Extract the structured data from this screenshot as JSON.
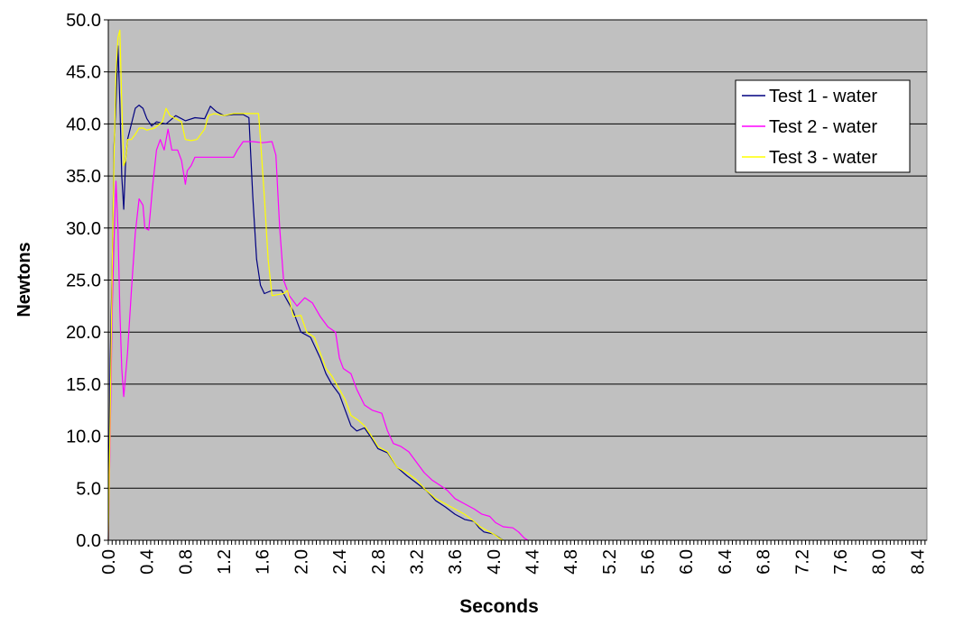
{
  "chart_data": {
    "type": "line",
    "title": "",
    "xlabel": "Seconds",
    "ylabel": "Newtons",
    "xlim": [
      0.0,
      8.5
    ],
    "ylim": [
      0.0,
      50.0
    ],
    "x_tick_labels": [
      "0.0",
      "0.4",
      "0.8",
      "1.2",
      "1.6",
      "2.0",
      "2.4",
      "2.8",
      "3.2",
      "3.6",
      "4.0",
      "4.4",
      "4.8",
      "5.2",
      "5.6",
      "6.0",
      "6.4",
      "6.8",
      "7.2",
      "7.6",
      "8.0",
      "8.4"
    ],
    "y_tick_labels": [
      "0.0",
      "5.0",
      "10.0",
      "15.0",
      "20.0",
      "25.0",
      "30.0",
      "35.0",
      "40.0",
      "45.0",
      "50.0"
    ],
    "grid": "horizontal",
    "legend_position": "top-right",
    "plot_background": "#c0c0c0",
    "series": [
      {
        "name": "Test 1 - water",
        "color": "#000080",
        "points": [
          [
            0.0,
            0.0
          ],
          [
            0.02,
            17.5
          ],
          [
            0.04,
            26.0
          ],
          [
            0.06,
            38.0
          ],
          [
            0.08,
            42.0
          ],
          [
            0.1,
            47.5
          ],
          [
            0.12,
            42.0
          ],
          [
            0.14,
            35.0
          ],
          [
            0.16,
            31.8
          ],
          [
            0.18,
            36.5
          ],
          [
            0.2,
            38.5
          ],
          [
            0.24,
            40.0
          ],
          [
            0.28,
            41.5
          ],
          [
            0.32,
            41.8
          ],
          [
            0.36,
            41.5
          ],
          [
            0.4,
            40.5
          ],
          [
            0.45,
            39.8
          ],
          [
            0.5,
            40.2
          ],
          [
            0.6,
            40.0
          ],
          [
            0.7,
            40.8
          ],
          [
            0.8,
            40.3
          ],
          [
            0.9,
            40.6
          ],
          [
            1.0,
            40.5
          ],
          [
            1.06,
            41.7
          ],
          [
            1.12,
            41.2
          ],
          [
            1.2,
            40.8
          ],
          [
            1.3,
            40.9
          ],
          [
            1.4,
            40.9
          ],
          [
            1.46,
            40.6
          ],
          [
            1.5,
            33.0
          ],
          [
            1.54,
            27.0
          ],
          [
            1.58,
            24.5
          ],
          [
            1.62,
            23.7
          ],
          [
            1.7,
            24.0
          ],
          [
            1.8,
            24.0
          ],
          [
            1.86,
            23.0
          ],
          [
            1.92,
            22.0
          ],
          [
            2.0,
            20.0
          ],
          [
            2.1,
            19.5
          ],
          [
            2.2,
            17.5
          ],
          [
            2.26,
            16.0
          ],
          [
            2.32,
            15.0
          ],
          [
            2.4,
            14.0
          ],
          [
            2.46,
            12.5
          ],
          [
            2.52,
            11.0
          ],
          [
            2.58,
            10.5
          ],
          [
            2.66,
            10.8
          ],
          [
            2.72,
            10.0
          ],
          [
            2.8,
            8.8
          ],
          [
            2.9,
            8.4
          ],
          [
            3.0,
            7.0
          ],
          [
            3.1,
            6.2
          ],
          [
            3.2,
            5.5
          ],
          [
            3.3,
            4.8
          ],
          [
            3.4,
            3.8
          ],
          [
            3.5,
            3.2
          ],
          [
            3.6,
            2.5
          ],
          [
            3.7,
            2.0
          ],
          [
            3.8,
            1.8
          ],
          [
            3.85,
            1.2
          ],
          [
            3.9,
            0.8
          ],
          [
            4.0,
            0.6
          ],
          [
            4.05,
            0.3
          ],
          [
            4.1,
            0.0
          ]
        ]
      },
      {
        "name": "Test 2 - water",
        "color": "#ff00ff",
        "points": [
          [
            0.0,
            0.0
          ],
          [
            0.02,
            10.0
          ],
          [
            0.04,
            22.0
          ],
          [
            0.06,
            29.0
          ],
          [
            0.08,
            34.5
          ],
          [
            0.1,
            30.0
          ],
          [
            0.12,
            22.0
          ],
          [
            0.14,
            16.5
          ],
          [
            0.16,
            13.8
          ],
          [
            0.2,
            18.0
          ],
          [
            0.24,
            24.0
          ],
          [
            0.28,
            29.5
          ],
          [
            0.32,
            32.8
          ],
          [
            0.36,
            32.2
          ],
          [
            0.38,
            30.0
          ],
          [
            0.42,
            29.8
          ],
          [
            0.46,
            34.0
          ],
          [
            0.5,
            37.5
          ],
          [
            0.54,
            38.5
          ],
          [
            0.58,
            37.5
          ],
          [
            0.62,
            39.5
          ],
          [
            0.66,
            37.5
          ],
          [
            0.72,
            37.5
          ],
          [
            0.76,
            36.5
          ],
          [
            0.8,
            34.2
          ],
          [
            0.82,
            35.5
          ],
          [
            0.86,
            36.0
          ],
          [
            0.9,
            36.8
          ],
          [
            1.0,
            36.8
          ],
          [
            1.1,
            36.8
          ],
          [
            1.2,
            36.8
          ],
          [
            1.3,
            36.8
          ],
          [
            1.34,
            37.5
          ],
          [
            1.4,
            38.3
          ],
          [
            1.5,
            38.3
          ],
          [
            1.6,
            38.2
          ],
          [
            1.7,
            38.3
          ],
          [
            1.74,
            37.0
          ],
          [
            1.78,
            30.0
          ],
          [
            1.82,
            25.0
          ],
          [
            1.88,
            23.5
          ],
          [
            1.96,
            22.5
          ],
          [
            2.04,
            23.3
          ],
          [
            2.12,
            22.8
          ],
          [
            2.2,
            21.5
          ],
          [
            2.28,
            20.5
          ],
          [
            2.36,
            20.0
          ],
          [
            2.4,
            17.5
          ],
          [
            2.44,
            16.5
          ],
          [
            2.52,
            16.0
          ],
          [
            2.58,
            14.5
          ],
          [
            2.66,
            13.0
          ],
          [
            2.74,
            12.5
          ],
          [
            2.84,
            12.2
          ],
          [
            2.9,
            10.5
          ],
          [
            2.96,
            9.3
          ],
          [
            3.04,
            9.0
          ],
          [
            3.12,
            8.5
          ],
          [
            3.2,
            7.5
          ],
          [
            3.28,
            6.5
          ],
          [
            3.36,
            5.8
          ],
          [
            3.44,
            5.3
          ],
          [
            3.52,
            4.8
          ],
          [
            3.6,
            4.0
          ],
          [
            3.7,
            3.5
          ],
          [
            3.8,
            3.0
          ],
          [
            3.88,
            2.5
          ],
          [
            3.96,
            2.3
          ],
          [
            4.02,
            1.7
          ],
          [
            4.1,
            1.3
          ],
          [
            4.2,
            1.2
          ],
          [
            4.26,
            0.8
          ],
          [
            4.32,
            0.2
          ],
          [
            4.36,
            0.0
          ]
        ]
      },
      {
        "name": "Test 3 - water",
        "color": "#ffff00",
        "points": [
          [
            0.0,
            0.0
          ],
          [
            0.02,
            12.0
          ],
          [
            0.04,
            26.0
          ],
          [
            0.06,
            37.0
          ],
          [
            0.08,
            45.0
          ],
          [
            0.1,
            48.3
          ],
          [
            0.12,
            49.0
          ],
          [
            0.14,
            42.0
          ],
          [
            0.16,
            36.0
          ],
          [
            0.18,
            36.5
          ],
          [
            0.2,
            38.5
          ],
          [
            0.24,
            38.5
          ],
          [
            0.28,
            39.0
          ],
          [
            0.32,
            39.6
          ],
          [
            0.36,
            39.6
          ],
          [
            0.4,
            39.4
          ],
          [
            0.48,
            39.6
          ],
          [
            0.56,
            40.2
          ],
          [
            0.6,
            41.5
          ],
          [
            0.64,
            40.8
          ],
          [
            0.7,
            40.5
          ],
          [
            0.76,
            40.2
          ],
          [
            0.8,
            38.5
          ],
          [
            0.86,
            38.4
          ],
          [
            0.92,
            38.5
          ],
          [
            1.0,
            39.5
          ],
          [
            1.04,
            40.8
          ],
          [
            1.1,
            41.0
          ],
          [
            1.2,
            40.8
          ],
          [
            1.3,
            41.0
          ],
          [
            1.4,
            41.0
          ],
          [
            1.5,
            41.0
          ],
          [
            1.56,
            41.0
          ],
          [
            1.58,
            38.5
          ],
          [
            1.62,
            33.0
          ],
          [
            1.66,
            27.0
          ],
          [
            1.7,
            23.5
          ],
          [
            1.76,
            23.6
          ],
          [
            1.82,
            23.7
          ],
          [
            1.86,
            24.0
          ],
          [
            1.92,
            21.5
          ],
          [
            2.0,
            21.6
          ],
          [
            2.06,
            20.0
          ],
          [
            2.14,
            19.5
          ],
          [
            2.2,
            18.0
          ],
          [
            2.26,
            16.5
          ],
          [
            2.32,
            15.8
          ],
          [
            2.4,
            14.5
          ],
          [
            2.46,
            13.5
          ],
          [
            2.52,
            12.0
          ],
          [
            2.6,
            11.5
          ],
          [
            2.66,
            11.0
          ],
          [
            2.72,
            10.2
          ],
          [
            2.8,
            9.0
          ],
          [
            2.9,
            8.5
          ],
          [
            3.0,
            7.0
          ],
          [
            3.1,
            6.5
          ],
          [
            3.2,
            5.8
          ],
          [
            3.3,
            4.8
          ],
          [
            3.4,
            4.0
          ],
          [
            3.5,
            3.5
          ],
          [
            3.6,
            3.0
          ],
          [
            3.7,
            2.5
          ],
          [
            3.8,
            1.8
          ],
          [
            3.86,
            1.3
          ],
          [
            3.92,
            1.0
          ],
          [
            4.0,
            0.6
          ],
          [
            4.06,
            0.2
          ],
          [
            4.1,
            0.0
          ]
        ]
      }
    ]
  }
}
